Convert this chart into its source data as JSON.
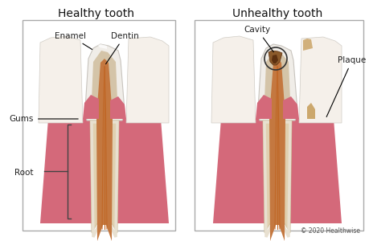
{
  "title_healthy": "Healthy tooth",
  "title_unhealthy": "Unhealthy tooth",
  "copyright": "© 2020 Healthwise",
  "bg_color": "#ffffff",
  "gum_color": "#d4697a",
  "enamel_color": "#f0ede8",
  "dentin_color": "#d4c4a8",
  "pulp_color": "#c47840",
  "nerve_color": "#c06828",
  "cementum_color": "#e0d0b0",
  "plaque_color": "#c8a060",
  "cavity_color": "#8b5a2b",
  "cavity_dark": "#5c3010",
  "inflamed_gum_color": "#e05050",
  "side_tooth_color": "#f5f0ea",
  "annotation_color": "#222222",
  "bracket_color": "#444444"
}
